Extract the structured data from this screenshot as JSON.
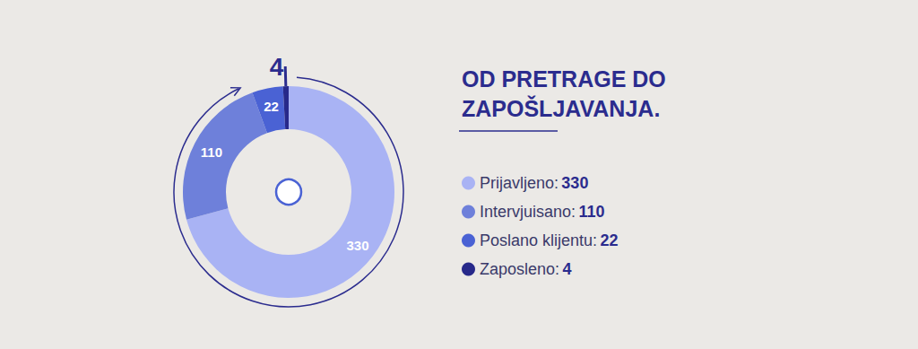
{
  "chart_data": {
    "type": "pie",
    "title": "OD PRETRAGE DO ZAPOŠLJAVANJA.",
    "categories": [
      "Prijavljeno:",
      "Intervjuisano:",
      "Poslano klijentu:",
      "Zaposleno:"
    ],
    "values": [
      330,
      110,
      22,
      4
    ],
    "colors": [
      "#a9b3f4",
      "#6e80da",
      "#4a62d4",
      "#27298a"
    ],
    "legend": "right",
    "data_labels": true
  }
}
